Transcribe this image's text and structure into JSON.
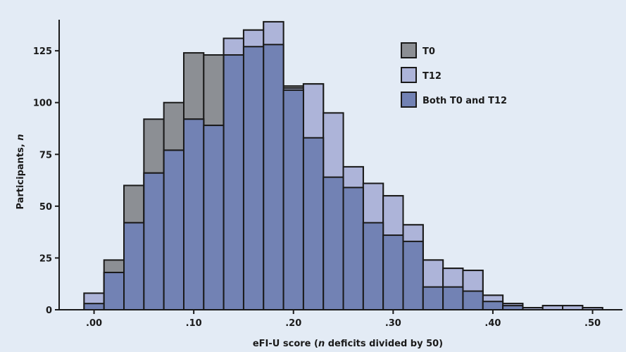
{
  "chart_data": {
    "type": "bar",
    "title": "",
    "xlabel_parts": [
      "eFI-U score (",
      "n",
      " deficits divided by 50)"
    ],
    "ylabel_parts": [
      "Participants, ",
      "n"
    ],
    "xlim": [
      -0.035,
      0.53
    ],
    "ylim": [
      0,
      140
    ],
    "bin_width": 0.02,
    "x_ticks": [
      {
        "value": 0.0,
        "label": ".00"
      },
      {
        "value": 0.1,
        "label": ".10"
      },
      {
        "value": 0.2,
        "label": ".20"
      },
      {
        "value": 0.3,
        "label": ".30"
      },
      {
        "value": 0.4,
        "label": ".40"
      },
      {
        "value": 0.5,
        "label": ".50"
      }
    ],
    "y_ticks": [
      {
        "value": 0,
        "label": "0"
      },
      {
        "value": 25,
        "label": "25"
      },
      {
        "value": 50,
        "label": "50"
      },
      {
        "value": 75,
        "label": "75"
      },
      {
        "value": 100,
        "label": "100"
      },
      {
        "value": 125,
        "label": "125"
      }
    ],
    "grid": false,
    "legend_position": "top-right",
    "bins": [
      0.0,
      0.02,
      0.04,
      0.06,
      0.08,
      0.1,
      0.12,
      0.14,
      0.16,
      0.18,
      0.2,
      0.22,
      0.24,
      0.26,
      0.28,
      0.3,
      0.32,
      0.34,
      0.36,
      0.38,
      0.4,
      0.42,
      0.44,
      0.46,
      0.48,
      0.5
    ],
    "series": [
      {
        "name": "T0",
        "color": "#8c8f94",
        "values": [
          8,
          24,
          60,
          92,
          100,
          124,
          123,
          131,
          135,
          139,
          108,
          109,
          95,
          69,
          61,
          55,
          41,
          24,
          20,
          19,
          7,
          3,
          1,
          2,
          2,
          1
        ]
      },
      {
        "name": "T12",
        "color": "#adb4d9",
        "values": [
          8,
          18,
          42,
          66,
          77,
          92,
          89,
          131,
          135,
          139,
          107,
          109,
          95,
          69,
          61,
          55,
          41,
          24,
          20,
          19,
          7,
          3,
          1,
          2,
          2,
          1
        ]
      },
      {
        "name": "Both T0 and T12",
        "color": "#7282b4",
        "values": [
          3,
          18,
          42,
          66,
          77,
          92,
          89,
          123,
          127,
          128,
          106,
          83,
          64,
          59,
          42,
          36,
          33,
          11,
          11,
          9,
          4,
          2,
          0,
          0,
          0,
          0
        ]
      }
    ]
  }
}
